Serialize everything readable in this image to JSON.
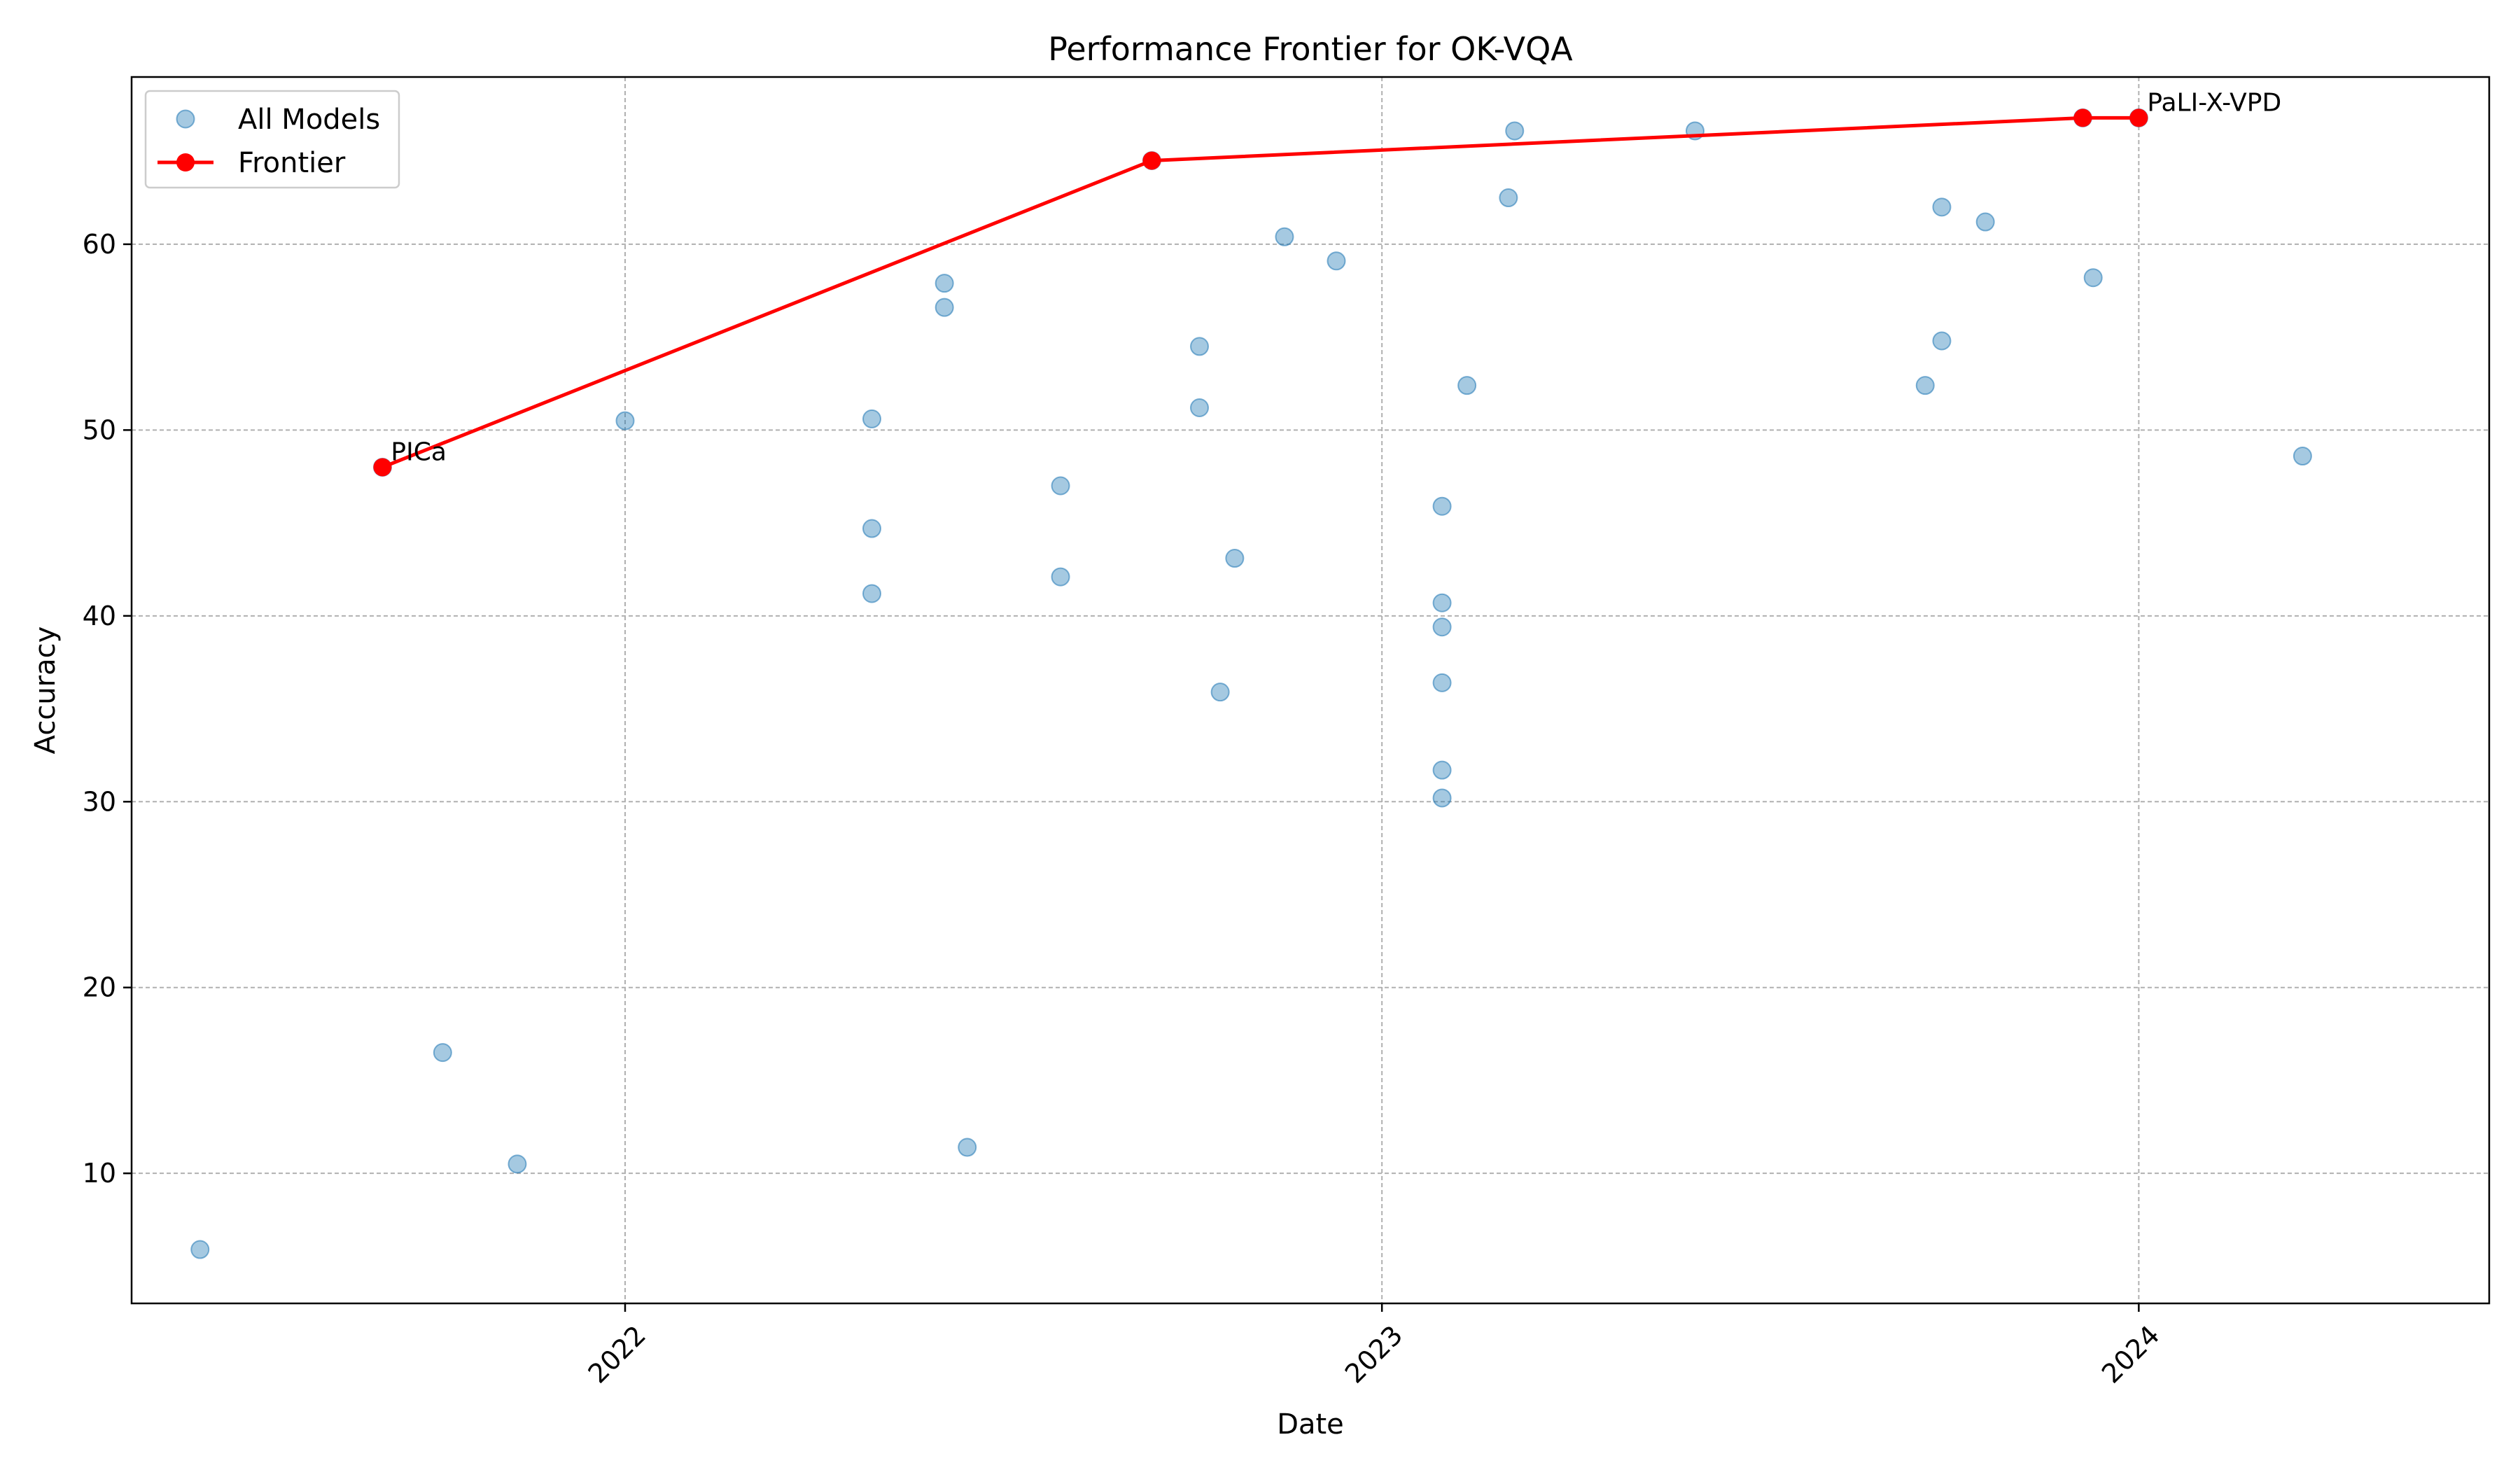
{
  "chart_data": {
    "type": "scatter",
    "title": "Performance Frontier for OK-VQA",
    "xlabel": "Date",
    "ylabel": "Accuracy",
    "xlim": [
      "2021-05-08",
      "2024-06-18"
    ],
    "ylim": [
      3,
      69
    ],
    "x_ticks": [
      {
        "date": "2022-01-01",
        "label": "2022"
      },
      {
        "date": "2023-01-01",
        "label": "2023"
      },
      {
        "date": "2024-01-01",
        "label": "2024"
      }
    ],
    "y_ticks": [
      10,
      20,
      30,
      40,
      50,
      60
    ],
    "grid": true,
    "legend": {
      "location": "upper left",
      "entries": [
        "All Models",
        "Frontier"
      ]
    },
    "colors": {
      "all_models": "#1f77b4",
      "frontier": "#ff0000"
    },
    "series": [
      {
        "name": "All Models",
        "kind": "scatter",
        "points": [
          {
            "x": "2021-06-10",
            "y": 5.9
          },
          {
            "x": "2021-09-06",
            "y": 48.0
          },
          {
            "x": "2021-10-05",
            "y": 16.5
          },
          {
            "x": "2021-11-10",
            "y": 10.5
          },
          {
            "x": "2022-01-01",
            "y": 50.5
          },
          {
            "x": "2022-04-30",
            "y": 50.6
          },
          {
            "x": "2022-04-30",
            "y": 44.7
          },
          {
            "x": "2022-04-30",
            "y": 41.2
          },
          {
            "x": "2022-06-04",
            "y": 57.9
          },
          {
            "x": "2022-06-04",
            "y": 56.6
          },
          {
            "x": "2022-06-15",
            "y": 11.4
          },
          {
            "x": "2022-07-30",
            "y": 47.0
          },
          {
            "x": "2022-07-30",
            "y": 42.1
          },
          {
            "x": "2022-09-12",
            "y": 64.5
          },
          {
            "x": "2022-10-05",
            "y": 54.5
          },
          {
            "x": "2022-10-05",
            "y": 51.2
          },
          {
            "x": "2022-10-15",
            "y": 35.9
          },
          {
            "x": "2022-10-22",
            "y": 43.1
          },
          {
            "x": "2022-11-15",
            "y": 60.4
          },
          {
            "x": "2022-12-10",
            "y": 59.1
          },
          {
            "x": "2023-01-30",
            "y": 45.9
          },
          {
            "x": "2023-01-30",
            "y": 40.7
          },
          {
            "x": "2023-01-30",
            "y": 39.4
          },
          {
            "x": "2023-01-30",
            "y": 36.4
          },
          {
            "x": "2023-01-30",
            "y": 31.7
          },
          {
            "x": "2023-01-30",
            "y": 30.2
          },
          {
            "x": "2023-02-11",
            "y": 52.4
          },
          {
            "x": "2023-03-03",
            "y": 62.5
          },
          {
            "x": "2023-03-06",
            "y": 66.1
          },
          {
            "x": "2023-06-01",
            "y": 66.1
          },
          {
            "x": "2023-09-20",
            "y": 52.4
          },
          {
            "x": "2023-09-28",
            "y": 62.0
          },
          {
            "x": "2023-09-28",
            "y": 54.8
          },
          {
            "x": "2023-10-19",
            "y": 61.2
          },
          {
            "x": "2023-12-05",
            "y": 66.8
          },
          {
            "x": "2023-12-10",
            "y": 58.2
          },
          {
            "x": "2024-01-01",
            "y": 66.8
          },
          {
            "x": "2024-03-20",
            "y": 48.6
          }
        ]
      },
      {
        "name": "Frontier",
        "kind": "line",
        "points": [
          {
            "x": "2021-09-06",
            "y": 48.0
          },
          {
            "x": "2022-09-12",
            "y": 64.5
          },
          {
            "x": "2023-12-05",
            "y": 66.8
          },
          {
            "x": "2024-01-01",
            "y": 66.8
          }
        ]
      }
    ],
    "annotations": [
      {
        "text": "PICa",
        "x": "2021-09-06",
        "y": 48.0
      },
      {
        "text": "PaLI-X-VPD",
        "x": "2024-01-01",
        "y": 66.8
      }
    ]
  }
}
